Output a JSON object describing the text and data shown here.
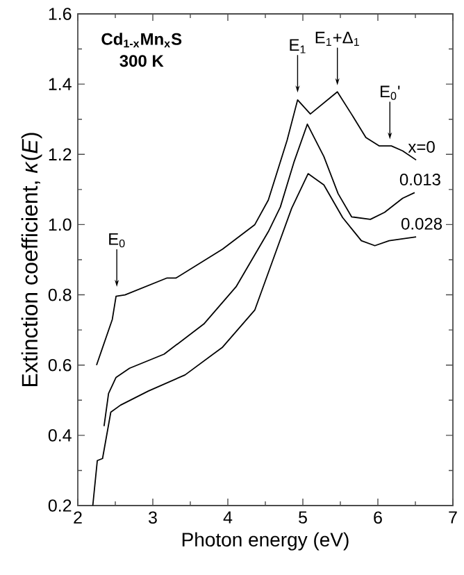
{
  "chart_data": {
    "type": "line",
    "xlabel": "Photon energy (eV)",
    "ylabel": "Extinction coefficient, *κ*(*E*)",
    "xlim": [
      2,
      7
    ],
    "ylim": [
      0.2,
      1.6
    ],
    "xticks": [
      2,
      3,
      4,
      5,
      6,
      7
    ],
    "yticks": [
      0.2,
      0.4,
      0.6,
      0.8,
      {
        "value": 1.0,
        "label": "1.0"
      },
      1.2,
      1.4,
      1.6
    ],
    "marker": "none",
    "series": [
      {
        "name": "x=0",
        "color": "#000000",
        "x": [
          2.25,
          2.46,
          2.51,
          2.63,
          3.19,
          3.31,
          3.93,
          4.36,
          4.54,
          4.79,
          4.93,
          5.1,
          5.46,
          5.65,
          5.84,
          6.02,
          6.18,
          6.33,
          6.51
        ],
        "values": [
          0.6,
          0.73,
          0.796,
          0.8,
          0.848,
          0.848,
          0.93,
          1.0,
          1.07,
          1.24,
          1.355,
          1.315,
          1.378,
          1.314,
          1.248,
          1.224,
          1.224,
          1.21,
          1.184
        ]
      },
      {
        "name": "0.013",
        "color": "#000000",
        "x": [
          2.35,
          2.41,
          2.51,
          2.69,
          3.15,
          3.68,
          4.11,
          4.54,
          4.7,
          4.88,
          5.06,
          5.28,
          5.47,
          5.65,
          5.9,
          6.09,
          6.33,
          6.49
        ],
        "values": [
          0.426,
          0.519,
          0.565,
          0.591,
          0.631,
          0.717,
          0.823,
          0.98,
          1.05,
          1.177,
          1.286,
          1.194,
          1.088,
          1.022,
          1.015,
          1.035,
          1.075,
          1.091
        ]
      },
      {
        "name": "0.028",
        "color": "#000000",
        "x": [
          2.2,
          2.26,
          2.33,
          2.44,
          2.57,
          2.94,
          3.43,
          3.93,
          4.36,
          4.67,
          4.85,
          5.07,
          5.28,
          5.53,
          5.78,
          5.96,
          6.15,
          6.51
        ],
        "values": [
          0.2,
          0.328,
          0.334,
          0.466,
          0.486,
          0.526,
          0.572,
          0.651,
          0.757,
          0.94,
          1.046,
          1.145,
          1.113,
          1.02,
          0.954,
          0.94,
          0.954,
          0.965
        ]
      }
    ],
    "annotations": [
      "Cd$_{1-x}$Mn$_{x}$S",
      "300 K",
      "E$_{0}$",
      "E$_{1}$",
      "E$_{1}$+Δ$_{1}$",
      "E$_{0}$'"
    ]
  }
}
